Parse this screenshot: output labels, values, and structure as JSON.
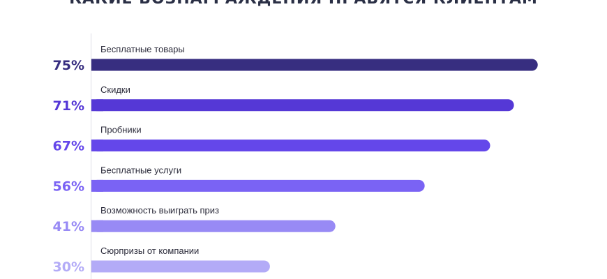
{
  "title": "КАКИЕ ВОЗНАГРАЖДЕНИЯ НРАВЯТСЯ КЛИЕНТАМ",
  "chart_data": {
    "type": "bar",
    "orientation": "horizontal",
    "title": "КАКИЕ ВОЗНАГРАЖДЕНИЯ НРАВЯТСЯ КЛИЕНТАМ",
    "categories": [
      "Бесплатные товары",
      "Скидки",
      "Пробники",
      "Бесплатные услуги",
      "Возможность выиграть приз",
      "Сюрпризы от компании"
    ],
    "values": [
      75,
      71,
      67,
      56,
      41,
      30
    ],
    "value_labels": [
      "75%",
      "71%",
      "67%",
      "56%",
      "41%",
      "30%"
    ],
    "colors": [
      "#372e80",
      "#5538d6",
      "#6447ea",
      "#7a63f4",
      "#988af5",
      "#b3abf7"
    ],
    "xlabel": "",
    "ylabel": "",
    "grid": false,
    "legend": "none"
  }
}
